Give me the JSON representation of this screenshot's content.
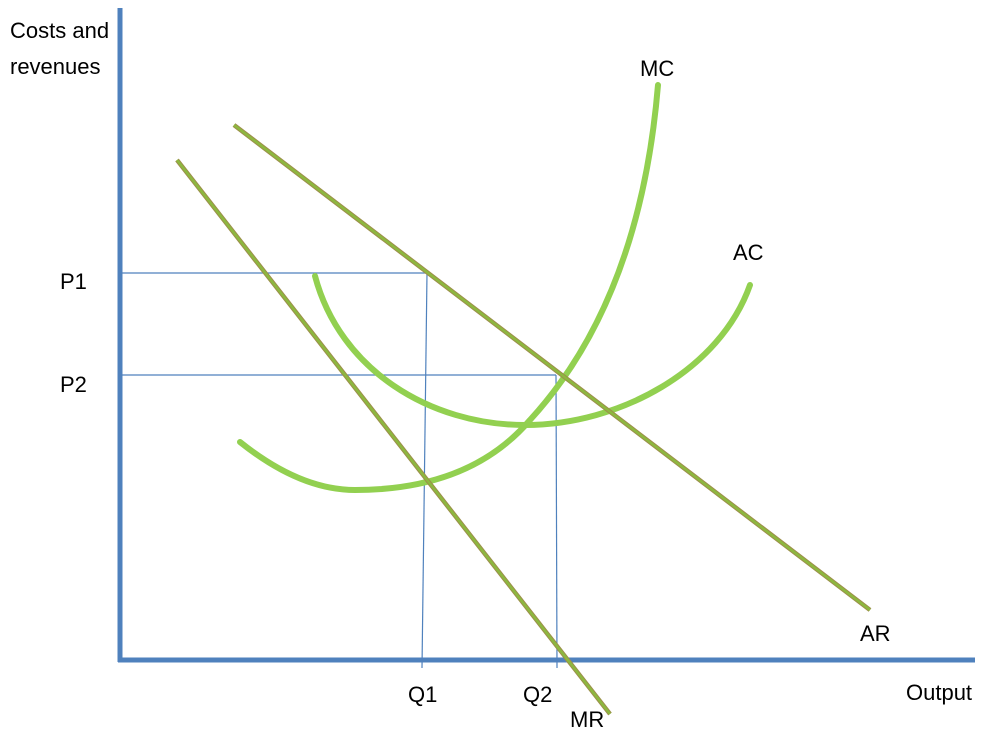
{
  "axes": {
    "y_label_line1": "Costs and",
    "y_label_line2": "revenues",
    "x_label": "Output"
  },
  "price_labels": {
    "p1": "P1",
    "p2": "P2"
  },
  "quantity_labels": {
    "q1": "Q1",
    "q2": "Q2"
  },
  "curve_labels": {
    "mc": "MC",
    "ac": "AC",
    "ar": "AR",
    "mr": "MR"
  },
  "colors": {
    "axis": "#4f81bd",
    "guide": "#4f81bd",
    "cost_curve": "#92d050",
    "revenue_line": "#8db83f",
    "revenue_line_shadow": "#9c8f4a"
  }
}
